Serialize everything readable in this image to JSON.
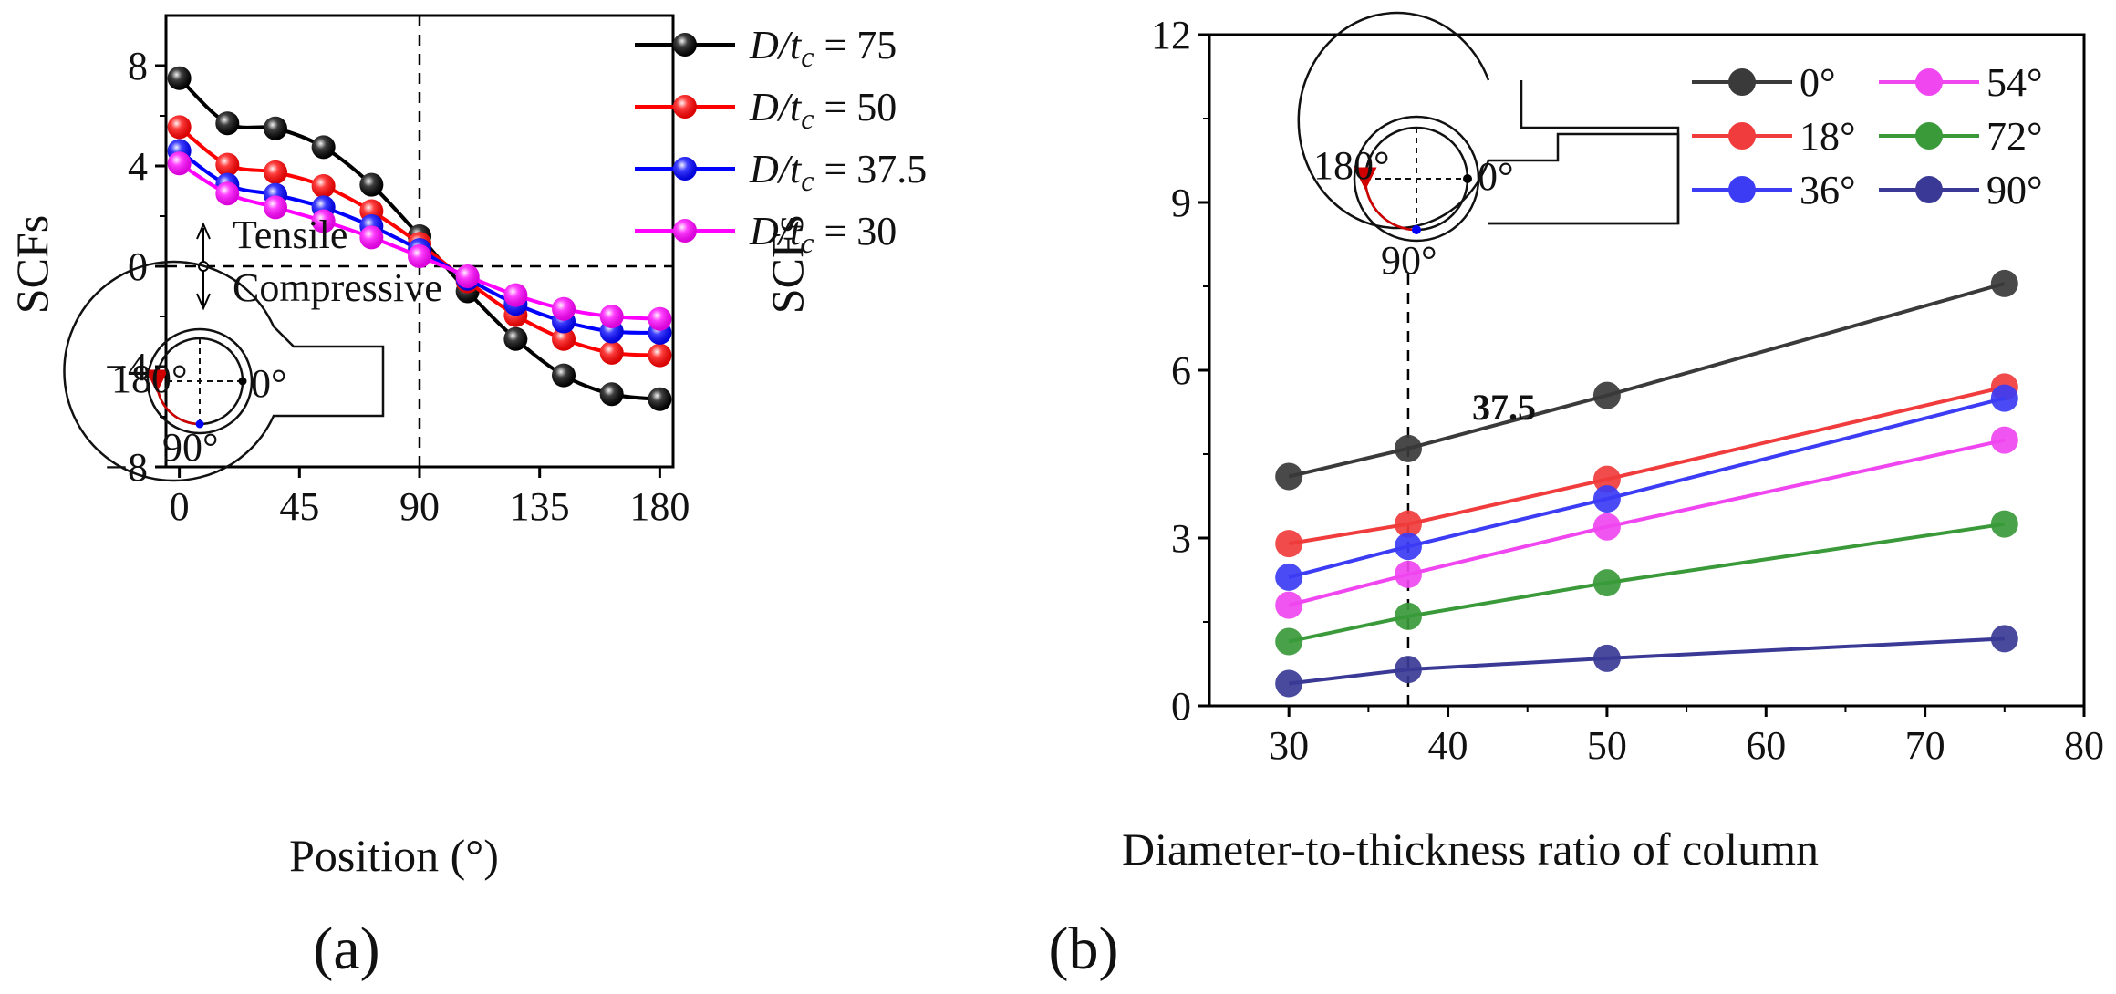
{
  "chart_data": [
    {
      "id": "a",
      "type": "line",
      "panel_label": "(a)",
      "xlabel": "Position (°)",
      "ylabel": "SCFs",
      "xlim": [
        -5,
        185
      ],
      "ylim": [
        -8,
        10
      ],
      "xticks": [
        0,
        45,
        90,
        135,
        180
      ],
      "yticks": [
        -8,
        -4,
        0,
        4,
        8
      ],
      "ytick_labels": [
        "−8",
        "−4",
        "0",
        "4",
        "8"
      ],
      "x": [
        0,
        18,
        36,
        54,
        72,
        90,
        108,
        126,
        144,
        162,
        180
      ],
      "series": [
        {
          "name": "D/tc = 75",
          "legend_var": "D/t",
          "legend_sub": "c",
          "legend_val": " = 75",
          "color": "#000000",
          "values": [
            7.5,
            5.7,
            5.5,
            4.75,
            3.25,
            1.2,
            -1.0,
            -2.9,
            -4.35,
            -5.1,
            -5.3
          ]
        },
        {
          "name": "D/tc = 50",
          "legend_var": "D/t",
          "legend_sub": "c",
          "legend_val": " = 50",
          "color": "#ff0000",
          "values": [
            5.55,
            4.05,
            3.75,
            3.2,
            2.2,
            0.9,
            -0.6,
            -1.95,
            -2.9,
            -3.45,
            -3.55
          ]
        },
        {
          "name": "D/tc = 37.5",
          "legend_var": "D/t",
          "legend_sub": "c",
          "legend_val": " = 37.5",
          "color": "#0000ff",
          "values": [
            4.6,
            3.25,
            2.85,
            2.35,
            1.6,
            0.65,
            -0.5,
            -1.5,
            -2.2,
            -2.6,
            -2.65
          ]
        },
        {
          "name": "D/tc = 30",
          "legend_var": "D/t",
          "legend_sub": "c",
          "legend_val": " = 30",
          "color": "#ff00ff",
          "values": [
            4.1,
            2.9,
            2.35,
            1.8,
            1.15,
            0.4,
            -0.4,
            -1.15,
            -1.7,
            -2.0,
            -2.1
          ]
        }
      ],
      "annotations": {
        "tensile": "Tensile",
        "compressive": "Compressive",
        "vline_x": 90
      },
      "inset": {
        "label_180": "180°",
        "label_0": "0°",
        "label_90": "90°"
      }
    },
    {
      "id": "b",
      "type": "line",
      "panel_label": "(b)",
      "xlabel": "Diameter-to-thickness ratio of column",
      "ylabel": "SCFs",
      "xlim": [
        25,
        80
      ],
      "ylim": [
        0,
        12
      ],
      "xticks": [
        30,
        40,
        50,
        60,
        70,
        80
      ],
      "yticks": [
        0,
        3,
        6,
        9,
        12
      ],
      "x": [
        30,
        37.5,
        50,
        75
      ],
      "series": [
        {
          "name": "0°",
          "color": "#3a3a3a",
          "values": [
            4.1,
            4.6,
            5.55,
            7.55
          ]
        },
        {
          "name": "18°",
          "color": "#f03c3c",
          "values": [
            2.9,
            3.25,
            4.05,
            5.7
          ]
        },
        {
          "name": "36°",
          "color": "#3c3cf5",
          "values": [
            2.3,
            2.85,
            3.7,
            5.5
          ]
        },
        {
          "name": "54°",
          "color": "#f046f0",
          "values": [
            1.8,
            2.35,
            3.2,
            4.75
          ]
        },
        {
          "name": "72°",
          "color": "#3a9a3a",
          "values": [
            1.15,
            1.6,
            2.2,
            3.25
          ]
        },
        {
          "name": "90°",
          "color": "#3a3a96",
          "values": [
            0.4,
            0.65,
            0.85,
            1.2
          ]
        }
      ],
      "annotations": {
        "vline_label": "37.5",
        "vline_x": 37.5
      },
      "inset": {
        "label_180": "180°",
        "label_0": "0°",
        "label_90": "90°"
      }
    }
  ]
}
